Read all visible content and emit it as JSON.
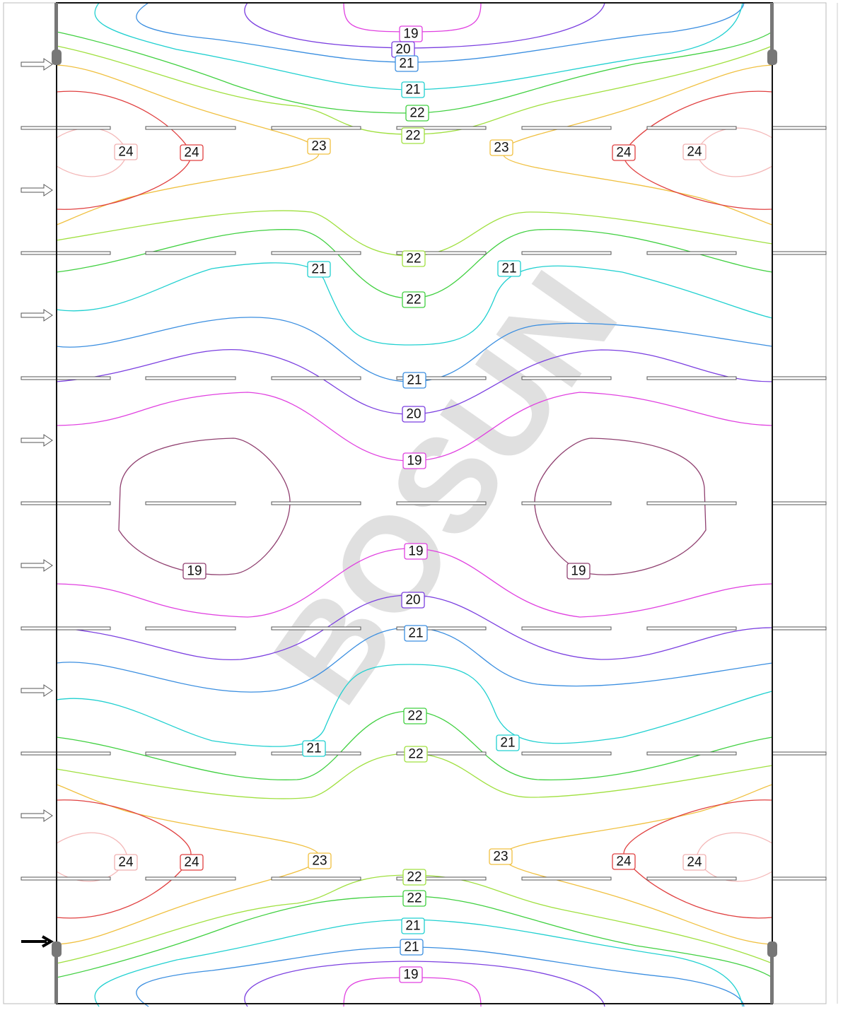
{
  "watermark": "BOSUN",
  "contour_labels": [
    19,
    20,
    21,
    21,
    22,
    22,
    23,
    23,
    24,
    24,
    24,
    24,
    22,
    21,
    21,
    22,
    21,
    20,
    19,
    19,
    19,
    19,
    20,
    21,
    22,
    21,
    21,
    22,
    23,
    23,
    24,
    24,
    24,
    24,
    22,
    22,
    21,
    21,
    19
  ]
}
